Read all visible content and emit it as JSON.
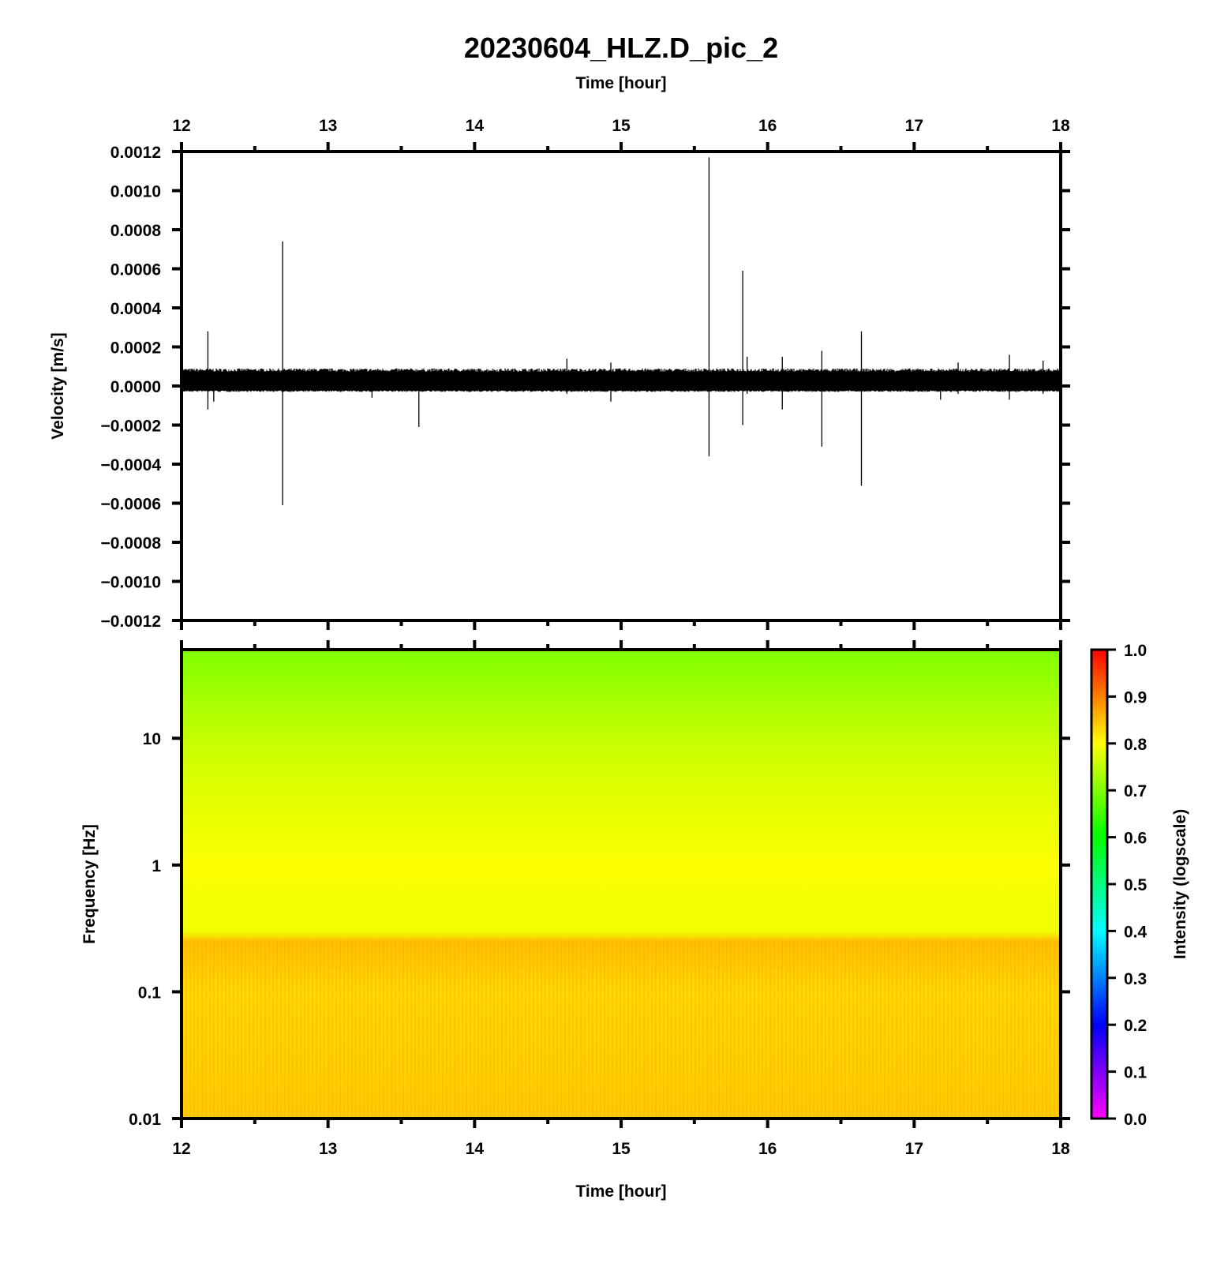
{
  "chart_data": [
    {
      "type": "line",
      "title": "20230604_HLZ.D_pic_2",
      "xlabel": "Time [hour]",
      "ylabel": "Velocity [m/s]",
      "xlim": [
        12,
        18
      ],
      "ylim": [
        -0.0012,
        0.0012
      ],
      "x_ticks": [
        "12",
        "13",
        "14",
        "15",
        "16",
        "17",
        "18"
      ],
      "y_ticks": [
        "0.0012",
        "0.0010",
        "0.0008",
        "0.0006",
        "0.0004",
        "0.0002",
        "0.0000",
        "−0.0002",
        "−0.0004",
        "−0.0006",
        "−0.0008",
        "−0.0010",
        "−0.0012"
      ],
      "noise_band": [
        -3e-05,
        9e-05
      ],
      "series_color": "#000000",
      "spikes": [
        {
          "x": 12.18,
          "high": 0.00028,
          "low": -0.00012
        },
        {
          "x": 12.22,
          "high": 5e-05,
          "low": -8e-05
        },
        {
          "x": 12.69,
          "high": 0.00074,
          "low": -0.00061
        },
        {
          "x": 13.3,
          "high": 5e-05,
          "low": -6e-05
        },
        {
          "x": 13.62,
          "high": 8e-05,
          "low": -0.00021
        },
        {
          "x": 14.63,
          "high": 0.00014,
          "low": -4e-05
        },
        {
          "x": 14.93,
          "high": 0.00012,
          "low": -8e-05
        },
        {
          "x": 15.6,
          "high": 0.00117,
          "low": -0.00036
        },
        {
          "x": 15.83,
          "high": 0.00059,
          "low": -0.0002
        },
        {
          "x": 15.86,
          "high": 0.00015,
          "low": -4e-05
        },
        {
          "x": 16.1,
          "high": 0.00015,
          "low": -0.00012
        },
        {
          "x": 16.37,
          "high": 0.00018,
          "low": -0.00031
        },
        {
          "x": 16.64,
          "high": 0.00028,
          "low": -0.00051
        },
        {
          "x": 17.18,
          "high": 6e-05,
          "low": -7e-05
        },
        {
          "x": 17.3,
          "high": 0.00012,
          "low": -4e-05
        },
        {
          "x": 17.65,
          "high": 0.00016,
          "low": -7e-05
        },
        {
          "x": 17.88,
          "high": 0.00013,
          "low": -4e-05
        }
      ]
    },
    {
      "type": "heatmap",
      "xlabel": "Time [hour]",
      "ylabel": "Frequency [Hz]",
      "xlim": [
        12,
        18
      ],
      "ylim": [
        0.01,
        50
      ],
      "yscale": "log",
      "x_ticks": [
        "12",
        "13",
        "14",
        "15",
        "16",
        "17",
        "18"
      ],
      "y_ticks": [
        {
          "value": 10,
          "label": "10"
        },
        {
          "value": 1,
          "label": "1"
        },
        {
          "value": 0.1,
          "label": "0.1"
        },
        {
          "value": 0.01,
          "label": "0.01"
        }
      ],
      "intensity_profile": [
        {
          "freq": 50,
          "intensity": 0.7
        },
        {
          "freq": 20,
          "intensity": 0.73
        },
        {
          "freq": 8,
          "intensity": 0.76
        },
        {
          "freq": 3,
          "intensity": 0.78
        },
        {
          "freq": 1.5,
          "intensity": 0.79
        },
        {
          "freq": 1,
          "intensity": 0.8
        },
        {
          "freq": 0.5,
          "intensity": 0.79
        },
        {
          "freq": 0.3,
          "intensity": 0.79
        },
        {
          "freq": 0.25,
          "intensity": 0.85
        },
        {
          "freq": 0.1,
          "intensity": 0.83
        },
        {
          "freq": 0.01,
          "intensity": 0.84
        }
      ],
      "colorbar": {
        "label": "Intensity (logscale)",
        "range": [
          0,
          1
        ],
        "ticks": [
          "0.0",
          "0.1",
          "0.2",
          "0.3",
          "0.4",
          "0.5",
          "0.6",
          "0.7",
          "0.8",
          "0.9",
          "1.0"
        ],
        "colors": [
          "#ff00ff",
          "#8000ff",
          "#0000ff",
          "#0080ff",
          "#00ffff",
          "#00ff80",
          "#00ff00",
          "#80ff00",
          "#ffff00",
          "#ff8000",
          "#ff0000"
        ]
      }
    }
  ]
}
